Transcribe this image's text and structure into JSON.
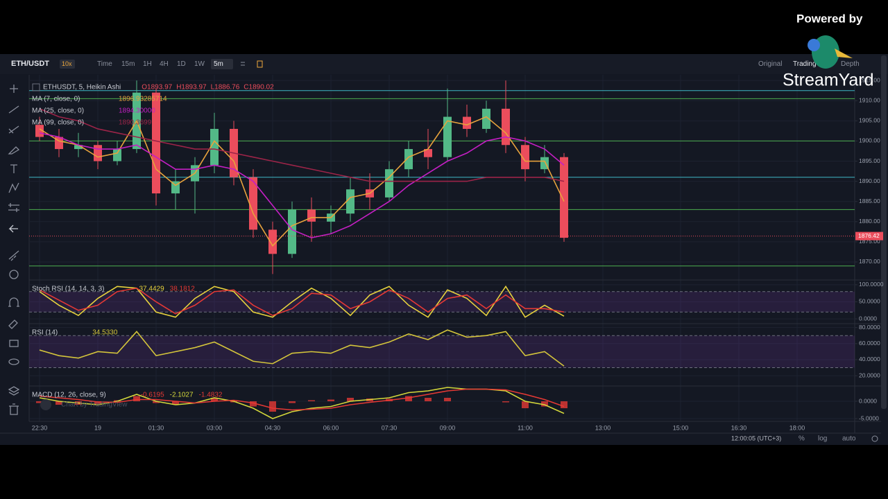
{
  "header": {
    "symbol": "ETH/USDT",
    "leverage": "10x",
    "intervals": [
      "Time",
      "15m",
      "1H",
      "4H",
      "1D",
      "1W"
    ],
    "active_interval": "5m",
    "views": [
      "Original",
      "TradingView",
      "Depth"
    ]
  },
  "watermark": {
    "powered_by": "Powered by",
    "brand": "StreamYard"
  },
  "footer": {
    "clock": "12:00:05 (UTC+3)",
    "options": [
      "%",
      "log",
      "auto"
    ],
    "credit": "Chart by TradingView"
  },
  "chart_data": [
    {
      "type": "candlestick",
      "title": "ETHUSDT, 5, Heikin Ashi",
      "ohlc_labels": [
        "O1893.97",
        "H1893.97",
        "L1886.76",
        "C1890.02"
      ],
      "categories": [
        "22:30",
        null,
        null,
        "19",
        null,
        null,
        "01:30",
        null,
        null,
        "03:00",
        null,
        null,
        "04:30",
        null,
        null,
        "06:00",
        null,
        null,
        "07:30",
        null,
        null,
        "09:00",
        null,
        null,
        null,
        "11:00",
        null,
        null,
        null,
        "13:00",
        null,
        null,
        null,
        "15:00",
        null,
        null,
        "16:30",
        null,
        null,
        "18:00",
        null
      ],
      "open": [
        1904,
        1901,
        1898,
        1899,
        1895,
        1898,
        1912,
        1887,
        1890,
        1894,
        1903,
        1891,
        1878,
        1872,
        1883,
        1880,
        1882,
        1888,
        1886,
        1893,
        1898,
        1896,
        1906,
        1903,
        1908,
        1899,
        1893,
        1896,
        null,
        null,
        null,
        null,
        null,
        null,
        null,
        null,
        null,
        null,
        null,
        null,
        null
      ],
      "high": [
        1906,
        1903,
        1902,
        1900,
        1900,
        1915,
        1913,
        1893,
        1896,
        1907,
        1905,
        1893,
        1880,
        1885,
        1886,
        1884,
        1891,
        1892,
        1895,
        1900,
        1903,
        1913,
        1909,
        1910,
        1915,
        1901,
        1899,
        1897,
        null,
        null,
        null,
        null,
        null,
        null,
        null,
        null,
        null,
        null,
        null,
        null,
        null
      ],
      "low": [
        1900,
        1896,
        1896,
        1893,
        1894,
        1897,
        1884,
        1883,
        1882,
        1892,
        1889,
        1876,
        1867,
        1871,
        1875,
        1877,
        1880,
        1883,
        1885,
        1891,
        1893,
        1895,
        1901,
        1902,
        1897,
        1890,
        1892,
        1875,
        null,
        null,
        null,
        null,
        null,
        null,
        null,
        null,
        null,
        null,
        null,
        null,
        null
      ],
      "close": [
        1901,
        1898,
        1899,
        1895,
        1898,
        1912,
        1887,
        1890,
        1894,
        1903,
        1891,
        1878,
        1872,
        1883,
        1880,
        1882,
        1888,
        1886,
        1893,
        1898,
        1896,
        1906,
        1903,
        1908,
        1899,
        1893,
        1896,
        1876,
        null,
        null,
        null,
        null,
        null,
        null,
        null,
        null,
        null,
        null,
        null,
        null,
        null
      ],
      "up_color": "#53b987",
      "down_color": "#eb4d5c",
      "series": [
        {
          "name": "MA (7, close, 0)",
          "legend_value": "1896.93285714",
          "color": "#e8a33d",
          "kind": "line",
          "values": [
            1903,
            1900,
            1899,
            1896,
            1897,
            1905,
            1893,
            1889,
            1892,
            1900,
            1895,
            1882,
            1874,
            1879,
            1881,
            1881,
            1886,
            1887,
            1891,
            1896,
            1898,
            1905,
            1904,
            1906,
            1902,
            1895,
            1895,
            1885,
            null,
            null,
            null,
            null,
            null,
            null,
            null,
            null,
            null,
            null,
            null,
            null,
            null
          ]
        },
        {
          "name": "MA (25, close, 0)",
          "legend_value": "1894.30000",
          "color": "#c41fc4",
          "kind": "line",
          "values": [
            1902,
            1901,
            1899,
            1898,
            1898,
            1899,
            1896,
            1893,
            1893,
            1894,
            1893,
            1890,
            1884,
            1878,
            1876,
            1877,
            1879,
            1882,
            1885,
            1889,
            1892,
            1895,
            1897,
            1900,
            1901,
            1900,
            1898,
            1894,
            null,
            null,
            null,
            null,
            null,
            null,
            null,
            null,
            null,
            null,
            null,
            null,
            null
          ]
        },
        {
          "name": "MA (99, close, 0)",
          "legend_value": "1890.3699",
          "color": "#9c2448",
          "kind": "line",
          "values": [
            1908,
            1906,
            1905,
            1903,
            1902,
            1901,
            1900,
            1899,
            1898,
            1898,
            1897,
            1896,
            1895,
            1894,
            1893,
            1892,
            1891,
            1890,
            1890,
            1890,
            1890,
            1890,
            1890,
            1891,
            1891,
            1891,
            1891,
            1890,
            null,
            null,
            null,
            null,
            null,
            null,
            null,
            null,
            null,
            null,
            null,
            null,
            null
          ]
        }
      ],
      "levels": [
        {
          "value": 1912.5,
          "color": "#3fb7c6"
        },
        {
          "value": 1910.5,
          "color": "#4caf50"
        },
        {
          "value": 1900,
          "color": "#4caf50"
        },
        {
          "value": 1891,
          "color": "#3fb7c6"
        },
        {
          "value": 1883,
          "color": "#4caf50"
        },
        {
          "value": 1869,
          "color": "#4caf50"
        }
      ],
      "last_price": 1876.42,
      "last_price_color": "#eb4d5c",
      "ylim": [
        1865.7,
        1916.4
      ],
      "yticks": [
        {
          "value": 1870,
          "label": "1870.00"
        },
        {
          "value": 1875,
          "label": "1875.00"
        },
        {
          "value": 1880,
          "label": "1880.00"
        },
        {
          "value": 1885,
          "label": "1885.00"
        },
        {
          "value": 1890,
          "label": "1890.00"
        },
        {
          "value": 1895,
          "label": "1895.00"
        },
        {
          "value": 1900,
          "label": "1900.00"
        },
        {
          "value": 1905,
          "label": "1905.00"
        },
        {
          "value": 1910,
          "label": "1910.00"
        },
        {
          "value": 1915,
          "label": "1915.00"
        }
      ]
    },
    {
      "type": "line",
      "title": "Stoch RSI (14, 14, 3, 3)",
      "band": [
        20,
        80
      ],
      "series": [
        {
          "legend_value": "37.4429",
          "color": "#e8d33d",
          "kind": "line",
          "values": [
            80,
            40,
            10,
            60,
            95,
            90,
            20,
            5,
            60,
            95,
            80,
            20,
            5,
            50,
            90,
            60,
            10,
            70,
            95,
            40,
            5,
            85,
            60,
            10,
            95,
            5,
            40,
            8,
            null,
            null,
            null,
            null,
            null,
            null,
            null,
            null,
            null,
            null,
            null,
            null,
            null
          ]
        },
        {
          "legend_value": "38.1812",
          "color": "#e53935",
          "kind": "line",
          "values": [
            85,
            55,
            25,
            40,
            80,
            90,
            50,
            15,
            40,
            80,
            85,
            40,
            10,
            30,
            75,
            70,
            30,
            50,
            85,
            60,
            20,
            60,
            70,
            30,
            70,
            30,
            30,
            20,
            null,
            null,
            null,
            null,
            null,
            null,
            null,
            null,
            null,
            null,
            null,
            null,
            null
          ]
        }
      ],
      "ylim": [
        -10,
        112
      ],
      "yticks": [
        {
          "value": 0,
          "label": "0.0000"
        },
        {
          "value": 50,
          "label": "50.0000"
        },
        {
          "value": 100,
          "label": "100.0000"
        }
      ]
    },
    {
      "type": "line",
      "title": "RSI (14)",
      "band": [
        30,
        70
      ],
      "series": [
        {
          "legend_value": "34.5330",
          "color": "#d4c53b",
          "kind": "line",
          "values": [
            52,
            45,
            42,
            50,
            48,
            75,
            45,
            50,
            55,
            62,
            50,
            38,
            35,
            48,
            50,
            48,
            58,
            55,
            62,
            72,
            65,
            77,
            68,
            70,
            75,
            45,
            50,
            32,
            null,
            null,
            null,
            null,
            null,
            null,
            null,
            null,
            null,
            null,
            null,
            null,
            null
          ]
        }
      ],
      "ylim": [
        8,
        84
      ],
      "yticks": [
        {
          "value": 20,
          "label": "20.0000"
        },
        {
          "value": 40,
          "label": "40.0000"
        },
        {
          "value": 60,
          "label": "60.0000"
        },
        {
          "value": 80,
          "label": "80.0000"
        }
      ]
    },
    {
      "type": "line",
      "title": "MACD (12, 26, close, 9)",
      "series": [
        {
          "legend_value": "-0.6195",
          "color": "#e53935",
          "kind": "bar",
          "values": [
            -0.5,
            -1,
            -1,
            -0.8,
            0.3,
            1.5,
            -0.5,
            -1,
            0,
            1,
            -0.3,
            -1.5,
            -3,
            -0.5,
            0.3,
            0.5,
            1,
            0.8,
            0.7,
            1.5,
            1,
            1,
            0,
            0,
            -0.3,
            -2,
            -1.5,
            -2,
            null,
            null,
            null,
            null,
            null,
            null,
            null,
            null,
            null,
            null,
            null,
            null,
            null
          ]
        },
        {
          "legend_value": "-2.1027",
          "color": "#d4d83b",
          "kind": "line",
          "values": [
            1,
            0,
            -0.5,
            -1,
            0,
            2,
            0,
            -1,
            -0.5,
            1,
            0,
            -2,
            -5,
            -3,
            -2,
            -1.5,
            0,
            0.5,
            1,
            2.5,
            3,
            4,
            3.5,
            3.5,
            3,
            0,
            -1,
            -3.5,
            null,
            null,
            null,
            null,
            null,
            null,
            null,
            null,
            null,
            null,
            null,
            null,
            null
          ]
        },
        {
          "legend_value": "-1.4832",
          "color": "#e53935",
          "kind": "line",
          "values": [
            1.5,
            1,
            0.5,
            -0.2,
            -0.3,
            0.5,
            0.5,
            0,
            -0.5,
            0,
            0.3,
            -0.5,
            -2,
            -2.5,
            -2.3,
            -2,
            -1,
            -0.3,
            0.3,
            1,
            2,
            3,
            3.5,
            3.5,
            3.3,
            2,
            0.5,
            -1.5,
            null,
            null,
            null,
            null,
            null,
            null,
            null,
            null,
            null,
            null,
            null,
            null,
            null
          ]
        }
      ],
      "ylim": [
        -5.8,
        4.2
      ],
      "yticks": [
        {
          "value": 0,
          "label": "0.0000"
        },
        {
          "value": -5,
          "label": "-5.0000"
        }
      ]
    }
  ]
}
